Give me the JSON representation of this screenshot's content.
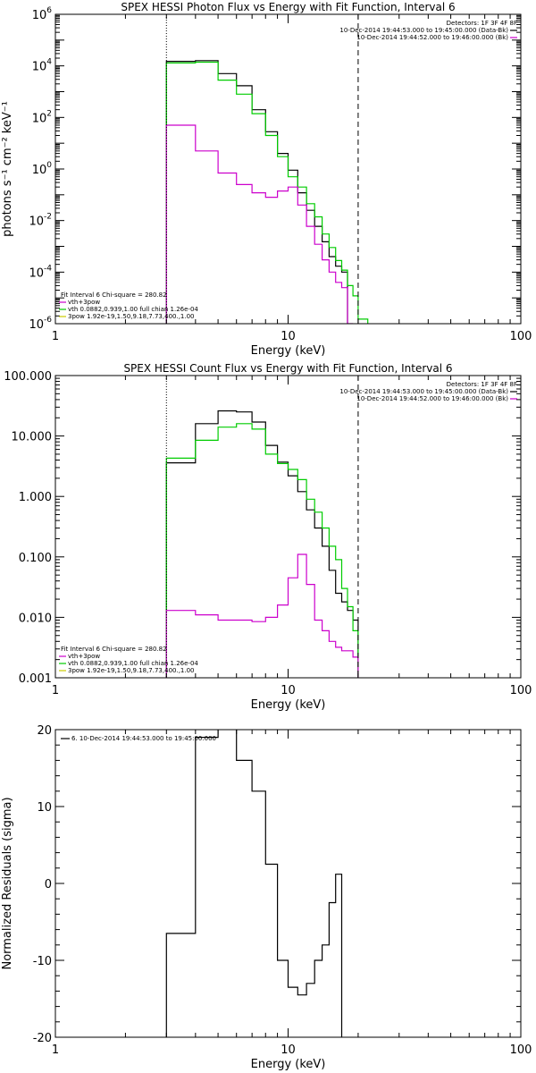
{
  "chart_data": [
    {
      "type": "line",
      "title": "SPEX HESSI Photon Flux vs Energy with Fit Function, Interval 6",
      "xlabel": "Energy (keV)",
      "ylabel": "photons s⁻¹ cm⁻² keV⁻¹",
      "x_scale": "log",
      "y_scale": "log",
      "xlim": [
        1,
        100
      ],
      "ylim": [
        1e-06,
        1000000.0
      ],
      "x_ticks": [
        {
          "v": 1,
          "label": "1"
        },
        {
          "v": 10,
          "label": "10"
        },
        {
          "v": 100,
          "label": "100"
        }
      ],
      "y_ticks": [
        {
          "v": 1e-06,
          "base": "10",
          "exp": "-6"
        },
        {
          "v": 0.0001,
          "base": "10",
          "exp": "-4"
        },
        {
          "v": 0.01,
          "base": "10",
          "exp": "-2"
        },
        {
          "v": 1,
          "base": "10",
          "exp": "0"
        },
        {
          "v": 100,
          "base": "10",
          "exp": "2"
        },
        {
          "v": 10000.0,
          "base": "10",
          "exp": "4"
        },
        {
          "v": 1000000.0,
          "base": "10",
          "exp": "6"
        }
      ],
      "vlines": [
        {
          "x": 3,
          "style": "dotted"
        },
        {
          "x": 20,
          "style": "dashed"
        }
      ],
      "legend_top": [
        "Detectors: 1F 3F 4F 8F",
        "10-Dec-2014 19:44:53.000 to 19:45:00.000 (Data-Bk)",
        "10-Dec-2014 19:44:52.000 to 19:46:00.000 (Bk)"
      ],
      "legend_top_colors": [
        "",
        "#000000",
        "#cc00cc"
      ],
      "legend_bottom": [
        "Fit Interval 6   Chi-square = 280.82",
        "vth+3pow",
        "vth 0.0882,0.939,1.00  full chian 1.26e-04",
        "3pow 1.92e-19,1.50,9.18,7.73,400.,1.00"
      ],
      "legend_bottom_colors": [
        "",
        "#cc00cc",
        "#00cc00",
        "#cccc00"
      ],
      "edges": [
        3,
        4,
        5,
        6,
        7,
        8,
        9,
        10,
        11,
        12,
        13,
        14,
        15,
        16,
        17,
        18,
        19,
        20,
        22
      ],
      "series": [
        {
          "name": "Data-Bk",
          "color": "#000000",
          "values": [
            15000,
            16000,
            5000,
            1700,
            200,
            28,
            4,
            0.9,
            0.12,
            0.025,
            0.006,
            0.0015,
            0.0004,
            0.00017,
            0.0001,
            null,
            null,
            null
          ]
        },
        {
          "name": "vth+3pow",
          "color": "#00cc00",
          "values": [
            13000,
            14000,
            2800,
            800,
            140,
            20,
            3,
            0.5,
            0.2,
            0.045,
            0.014,
            0.003,
            0.0009,
            0.00028,
            0.00012,
            3e-05,
            1.2e-05,
            1.5e-06
          ]
        },
        {
          "name": "Bk",
          "color": "#cc00cc",
          "values": [
            50,
            5,
            0.7,
            0.25,
            0.12,
            0.08,
            0.14,
            0.2,
            0.04,
            0.006,
            0.0012,
            0.0003,
            0.0001,
            4e-05,
            2.5e-05,
            1e-06,
            null,
            null
          ]
        }
      ]
    },
    {
      "type": "line",
      "title": "SPEX HESSI Count Flux vs Energy with Fit Function, Interval 6",
      "xlabel": "Energy (keV)",
      "ylabel": "",
      "x_scale": "log",
      "y_scale": "log",
      "xlim": [
        1,
        100
      ],
      "ylim": [
        0.001,
        100
      ],
      "x_ticks": [
        {
          "v": 1,
          "label": "1"
        },
        {
          "v": 10,
          "label": "10"
        },
        {
          "v": 100,
          "label": "100"
        }
      ],
      "y_ticks": [
        {
          "v": 0.001,
          "label": "0.001"
        },
        {
          "v": 0.01,
          "label": "0.010"
        },
        {
          "v": 0.1,
          "label": "0.100"
        },
        {
          "v": 1,
          "label": "1.000"
        },
        {
          "v": 10,
          "label": "10.000"
        },
        {
          "v": 100,
          "label": "100.000"
        }
      ],
      "vlines": [
        {
          "x": 3,
          "style": "dotted"
        },
        {
          "x": 20,
          "style": "dashed"
        }
      ],
      "legend_top": [
        "Detectors: 1F 3F 4F 8F",
        "10-Dec-2014 19:44:53.000 to 19:45:00.000 (Data-Bk)",
        "10-Dec-2014 19:44:52.000 to 19:46:00.000 (Bk)"
      ],
      "legend_top_colors": [
        "",
        "#000000",
        "#cc00cc"
      ],
      "legend_bottom": [
        "Fit Interval 6   Chi-square = 280.82",
        "vth+3pow",
        "vth 0.0882,0.939,1.00  full chian 1.26e-04",
        "3pow 1.92e-19,1.50,9.18,7.73,400.,1.00"
      ],
      "legend_bottom_colors": [
        "",
        "#cc00cc",
        "#00cc00",
        "#cccc00"
      ],
      "edges": [
        3,
        4,
        5,
        6,
        7,
        8,
        9,
        10,
        11,
        12,
        13,
        14,
        15,
        16,
        17,
        18,
        19,
        20
      ],
      "series": [
        {
          "name": "Data-Bk",
          "color": "#000000",
          "values": [
            3.6,
            16,
            26,
            25,
            17,
            7,
            3.7,
            2.2,
            1.2,
            0.6,
            0.3,
            0.15,
            0.06,
            0.025,
            0.018,
            0.013,
            0.009
          ]
        },
        {
          "name": "vth+3pow",
          "color": "#00cc00",
          "values": [
            4.3,
            8.5,
            14,
            16,
            13,
            5,
            3.5,
            2.8,
            1.9,
            0.9,
            0.55,
            0.3,
            0.15,
            0.09,
            0.03,
            0.015,
            0.006
          ]
        },
        {
          "name": "Bk",
          "color": "#cc00cc",
          "values": [
            0.013,
            0.011,
            0.009,
            0.009,
            0.0085,
            0.01,
            0.016,
            0.045,
            0.11,
            0.035,
            0.009,
            0.006,
            0.004,
            0.0032,
            0.0028,
            0.0028,
            0.0022
          ]
        }
      ]
    },
    {
      "type": "line",
      "title": "",
      "xlabel": "Energy (keV)",
      "ylabel": "Normalized Residuals (sigma)",
      "x_scale": "log",
      "y_scale": "linear",
      "xlim": [
        1,
        100
      ],
      "ylim": [
        -20,
        20
      ],
      "x_ticks": [
        {
          "v": 1,
          "label": "1"
        },
        {
          "v": 10,
          "label": "10"
        },
        {
          "v": 100,
          "label": "100"
        }
      ],
      "y_ticks": [
        {
          "v": -20,
          "label": "-20"
        },
        {
          "v": -10,
          "label": "-10"
        },
        {
          "v": 0,
          "label": "0"
        },
        {
          "v": 10,
          "label": "10"
        },
        {
          "v": 20,
          "label": "20"
        }
      ],
      "vlines": [],
      "legend_top": [
        "6. 10-Dec-2014 19:44:53.000 to 19:45:00.000"
      ],
      "legend_top_colors": [
        "#000000"
      ],
      "legend_bottom": [],
      "legend_bottom_colors": [],
      "edges": [
        3,
        4,
        5,
        6,
        7,
        8,
        9,
        10,
        11,
        12,
        13,
        14,
        15,
        16,
        17,
        18,
        19,
        20
      ],
      "series": [
        {
          "name": "6. 10-Dec-2014 19:44:53.000 to 19:45:00.000",
          "color": "#000000",
          "values": [
            -6.5,
            19,
            20.3,
            16,
            12,
            2.5,
            -10,
            -13.5,
            -14.5,
            -13,
            -10,
            -8,
            -2.5,
            1.2
          ]
        }
      ]
    }
  ]
}
